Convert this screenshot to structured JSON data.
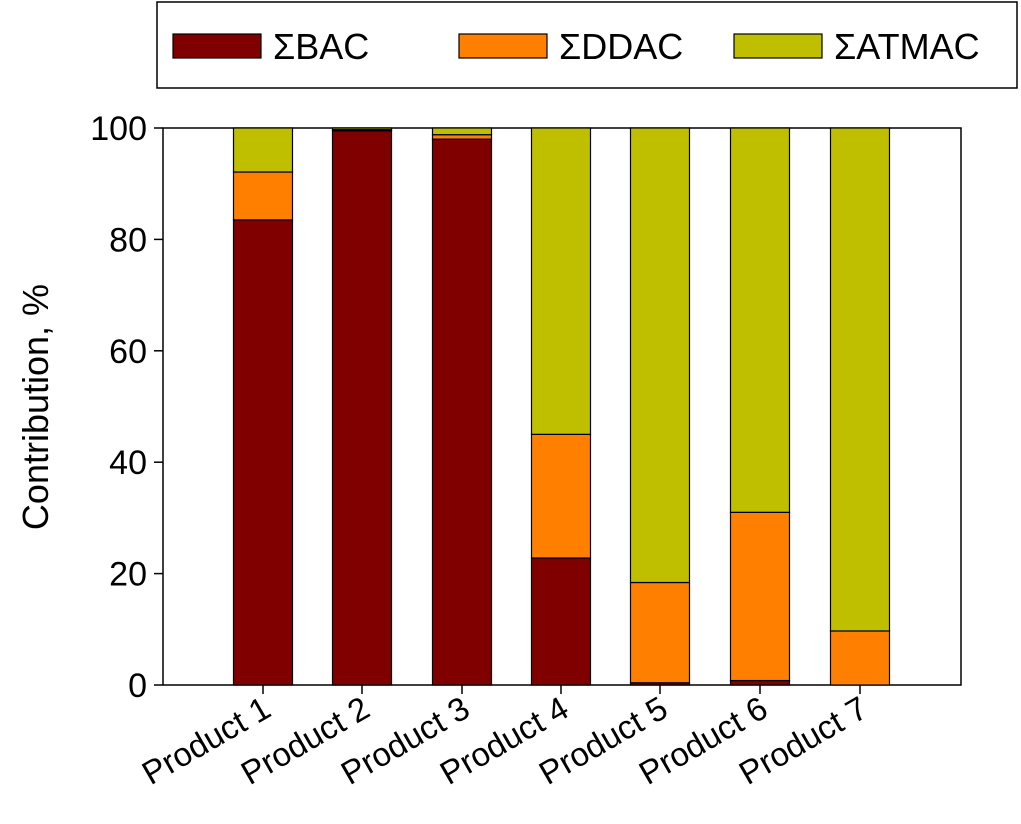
{
  "chart_data": {
    "type": "bar",
    "stacked": true,
    "title": "",
    "xlabel": "",
    "ylabel": "Contribution, %",
    "ylim": [
      0,
      100
    ],
    "yticks": [
      0,
      20,
      40,
      60,
      80,
      100
    ],
    "grid": false,
    "legend_position": "top",
    "categories": [
      "Product 1",
      "Product 2",
      "Product 3",
      "Product 4",
      "Product 5",
      "Product 6",
      "Product 7"
    ],
    "series": [
      {
        "name": "ΣBAC",
        "color": "#800000",
        "values": [
          83.5,
          99.5,
          98.0,
          22.8,
          0.4,
          0.8,
          0.0
        ]
      },
      {
        "name": "ΣDDAC",
        "color": "#FF8000",
        "values": [
          8.6,
          0.2,
          0.8,
          22.2,
          18.0,
          30.2,
          9.7
        ]
      },
      {
        "name": "ΣATMAC",
        "color": "#BFBF00",
        "values": [
          7.9,
          0.3,
          1.2,
          55.0,
          81.6,
          69.0,
          90.3
        ]
      }
    ]
  }
}
